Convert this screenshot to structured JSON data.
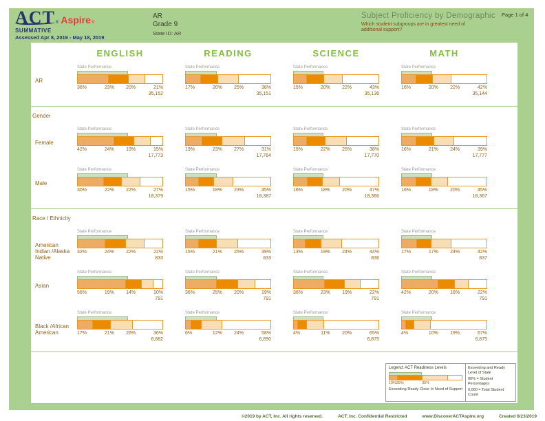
{
  "header": {
    "logo_act": "ACT",
    "logo_aspire": "Aspire",
    "reg_mark": "®",
    "program": "SUMMATIVE",
    "assessed": "Assessed Apr 8, 2019 - May 18, 2019",
    "org": "AR",
    "grade": "Grade 9",
    "state_id": "State ID: AR",
    "title": "Subject Proficiency by Demographic",
    "subtitle": "Which student subgroups are in greatest need of additional support?",
    "page_label": "Page 1 of 4"
  },
  "labels": {
    "state_performance": "State Performance"
  },
  "colors": {
    "background_green": "#A9D08E",
    "subject_header_green": "#82BF3E",
    "bar_border": "#E59A28",
    "segments": [
      "#EDAB63",
      "#ED8B00",
      "#F8DDB5",
      "#FFFFFF"
    ],
    "state_indicator_fill": "#CFDFC2",
    "state_indicator_border": "#9CB989",
    "text_brown": "#8F6015",
    "divider_green": "#A2C97F"
  },
  "chart_data": {
    "type": "stacked-bar",
    "subjects": [
      "ENGLISH",
      "READING",
      "SCIENCE",
      "MATH"
    ],
    "levels": [
      "Exceeding",
      "Ready",
      "Close",
      "In Need of Support"
    ],
    "state_ready_pct": [
      59,
      37,
      35,
      36
    ],
    "groups": [
      {
        "section": "",
        "rows": [
          {
            "label": "AR",
            "charts": [
              {
                "subject": "ENGLISH",
                "pcts": [
                  36,
                  23,
                  20,
                  21
                ],
                "count": "35,152"
              },
              {
                "subject": "READING",
                "pcts": [
                  17,
                  20,
                  25,
                  38
                ],
                "count": "35,151"
              },
              {
                "subject": "SCIENCE",
                "pcts": [
                  15,
                  20,
                  22,
                  43
                ],
                "count": "35,136"
              },
              {
                "subject": "MATH",
                "pcts": [
                  16,
                  20,
                  22,
                  42
                ],
                "count": "35,144"
              }
            ]
          }
        ]
      },
      {
        "section": "Gender",
        "rows": [
          {
            "label": "Female",
            "charts": [
              {
                "subject": "ENGLISH",
                "pcts": [
                  42,
                  24,
                  19,
                  15
                ],
                "count": "17,773"
              },
              {
                "subject": "READING",
                "pcts": [
                  19,
                  23,
                  27,
                  31
                ],
                "count": "17,764"
              },
              {
                "subject": "SCIENCE",
                "pcts": [
                  15,
                  22,
                  25,
                  38
                ],
                "count": "17,770"
              },
              {
                "subject": "MATH",
                "pcts": [
                  16,
                  21,
                  24,
                  39
                ],
                "count": "17,777"
              }
            ]
          },
          {
            "label": "Male",
            "charts": [
              {
                "subject": "ENGLISH",
                "pcts": [
                  30,
                  22,
                  22,
                  27
                ],
                "count": "18,379"
              },
              {
                "subject": "READING",
                "pcts": [
                  15,
                  18,
                  23,
                  45
                ],
                "count": "18,387"
              },
              {
                "subject": "SCIENCE",
                "pcts": [
                  16,
                  18,
                  20,
                  47
                ],
                "count": "18,366"
              },
              {
                "subject": "MATH",
                "pcts": [
                  16,
                  18,
                  20,
                  45
                ],
                "count": "18,367"
              }
            ]
          }
        ]
      },
      {
        "section": "Race / Ethnicity",
        "rows": [
          {
            "label": "American Indian /Alaska Native",
            "charts": [
              {
                "subject": "ENGLISH",
                "pcts": [
                  32,
                  24,
                  22,
                  22
                ],
                "count": "833"
              },
              {
                "subject": "READING",
                "pcts": [
                  15,
                  21,
                  25,
                  39
                ],
                "count": "833"
              },
              {
                "subject": "SCIENCE",
                "pcts": [
                  13,
                  19,
                  24,
                  44
                ],
                "count": "836"
              },
              {
                "subject": "MATH",
                "pcts": [
                  17,
                  17,
                  24,
                  42
                ],
                "count": "837"
              }
            ]
          },
          {
            "label": "Asian",
            "charts": [
              {
                "subject": "ENGLISH",
                "pcts": [
                  56,
                  19,
                  14,
                  10
                ],
                "count": "791"
              },
              {
                "subject": "READING",
                "pcts": [
                  36,
                  25,
                  20,
                  19
                ],
                "count": "791"
              },
              {
                "subject": "SCIENCE",
                "pcts": [
                  36,
                  23,
                  19,
                  22
                ],
                "count": "791"
              },
              {
                "subject": "MATH",
                "pcts": [
                  42,
                  20,
                  16,
                  22
                ],
                "count": "791"
              }
            ]
          },
          {
            "label": "Black /African American",
            "charts": [
              {
                "subject": "ENGLISH",
                "pcts": [
                  17,
                  21,
                  26,
                  36
                ],
                "count": "6,882"
              },
              {
                "subject": "READING",
                "pcts": [
                  6,
                  12,
                  24,
                  58
                ],
                "count": "6,890"
              },
              {
                "subject": "SCIENCE",
                "pcts": [
                  4,
                  11,
                  20,
                  65
                ],
                "count": "6,875"
              },
              {
                "subject": "MATH",
                "pcts": [
                  4,
                  10,
                  19,
                  67
                ],
                "count": "6,875"
              }
            ]
          }
        ]
      }
    ]
  },
  "legend": {
    "title": "Legend: ACT Readiness Levels",
    "sample_values": [
      10,
      35,
      35,
      20
    ],
    "sample_pct_labels": [
      "10%",
      "35%",
      "35%"
    ],
    "sample_state_pct": 45,
    "level_labels": [
      "Exceeding",
      "Ready",
      "Close",
      "In Need of Support"
    ],
    "state_note": "Exceeding and Ready Level of State",
    "pct_note": "00% = Student Percentages",
    "count_note": "0,000 = Total Student Count"
  },
  "footer": {
    "copyright": "©2019 by ACT, Inc. All rights reserved.",
    "confidential": "ACT, Inc. Confidential Restricted",
    "url": "www.DiscoverACTAspire.org",
    "created": "Created 6/23/2019"
  }
}
